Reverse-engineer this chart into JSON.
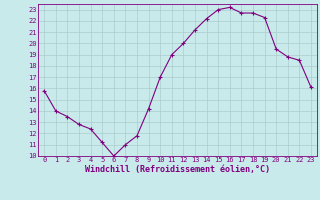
{
  "x": [
    0,
    1,
    2,
    3,
    4,
    5,
    6,
    7,
    8,
    9,
    10,
    11,
    12,
    13,
    14,
    15,
    16,
    17,
    18,
    19,
    20,
    21,
    22,
    23
  ],
  "y": [
    15.8,
    14.0,
    13.5,
    12.8,
    12.4,
    11.2,
    10.0,
    11.0,
    11.8,
    14.2,
    17.0,
    19.0,
    20.0,
    21.2,
    22.2,
    23.0,
    23.2,
    22.7,
    22.7,
    22.3,
    19.5,
    18.8,
    18.5,
    16.1
  ],
  "xlim": [
    -0.5,
    23.5
  ],
  "ylim": [
    10,
    23.5
  ],
  "yticks": [
    10,
    11,
    12,
    13,
    14,
    15,
    16,
    17,
    18,
    19,
    20,
    21,
    22,
    23
  ],
  "xticks": [
    0,
    1,
    2,
    3,
    4,
    5,
    6,
    7,
    8,
    9,
    10,
    11,
    12,
    13,
    14,
    15,
    16,
    17,
    18,
    19,
    20,
    21,
    22,
    23
  ],
  "xlabel": "Windchill (Refroidissement éolien,°C)",
  "line_color": "#800080",
  "marker_color": "#800080",
  "bg_color": "#c8eaea",
  "grid_color": "#aacccc",
  "label_fontsize": 5.5,
  "tick_fontsize": 5.0,
  "xlabel_fontsize": 6.0
}
